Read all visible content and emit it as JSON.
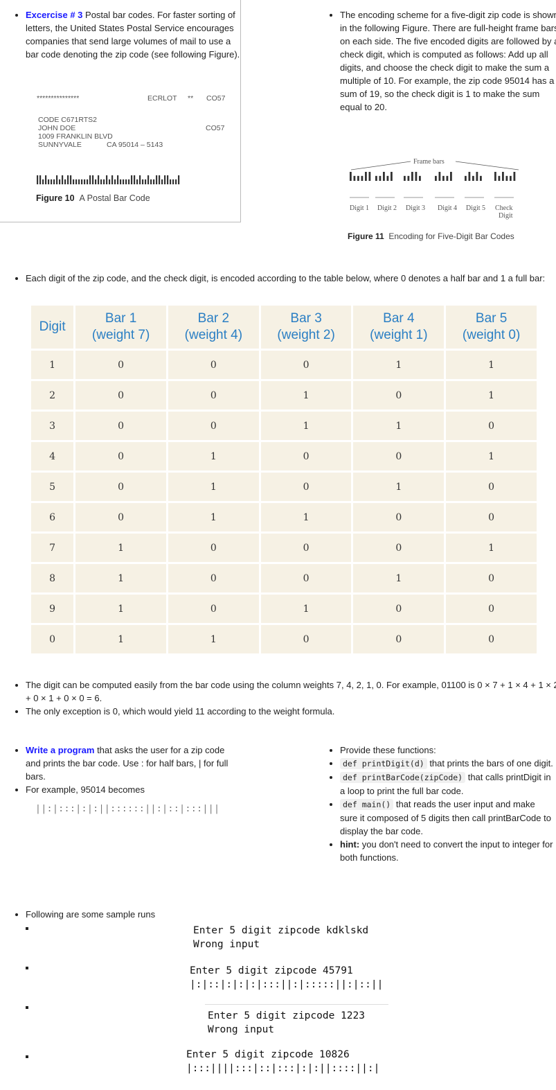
{
  "intro": {
    "title": "Excercise # 3",
    "text": " Postal bar codes. For faster sorting of letters, the United States Postal Service encourages companies that send large volumes of mail to use a bar code denoting the zip code (see following Figure)."
  },
  "figure10": {
    "line1_stars": "***************",
    "line1_ecrlot": "ECRLOT",
    "line1_stars2": "**",
    "line1_co57": "CO57",
    "code": "CODE  C671RTS2",
    "name": "JOHN DOE",
    "co57": "CO57",
    "street": "1009 FRANKLIN BLVD",
    "city": "SUNNYVALE",
    "state_zip": "CA  95014 – 5143",
    "caption_label": "Figure 10",
    "caption_text": "A Postal Bar Code"
  },
  "encoding_text": "The encoding scheme for a five-digit zip code is shown in the following Figure. There are full-height frame bars on each side. The five encoded digits are followed by a check digit, which is computed as follows: Add up all digits, and choose the check digit to make the sum a multiple of 10. For example, the zip code 95014 has a sum of 19, so the check digit is 1 to make the sum equal to 20.",
  "figure11": {
    "frame_bars": "Frame bars",
    "labels": [
      "Digit 1",
      "Digit 2",
      "Digit 3",
      "Digit 4",
      "Digit 5",
      "Check"
    ],
    "check_line2": "Digit",
    "caption_label": "Figure 11",
    "caption_text": "Encoding for Five-Digit Bar Codes"
  },
  "table_intro": "Each digit of the zip code, and the check digit, is encoded according to the table below, where 0 denotes a half bar and 1 a full bar:",
  "table": {
    "headers": [
      [
        "Digit",
        ""
      ],
      [
        "Bar 1",
        "(weight 7)"
      ],
      [
        "Bar 2",
        "(weight 4)"
      ],
      [
        "Bar 3",
        "(weight 2)"
      ],
      [
        "Bar 4",
        "(weight 1)"
      ],
      [
        "Bar 5",
        "(weight 0)"
      ]
    ],
    "rows": [
      [
        "1",
        "0",
        "0",
        "0",
        "1",
        "1"
      ],
      [
        "2",
        "0",
        "0",
        "1",
        "0",
        "1"
      ],
      [
        "3",
        "0",
        "0",
        "1",
        "1",
        "0"
      ],
      [
        "4",
        "0",
        "1",
        "0",
        "0",
        "1"
      ],
      [
        "5",
        "0",
        "1",
        "0",
        "1",
        "0"
      ],
      [
        "6",
        "0",
        "1",
        "1",
        "0",
        "0"
      ],
      [
        "7",
        "1",
        "0",
        "0",
        "0",
        "1"
      ],
      [
        "8",
        "1",
        "0",
        "0",
        "1",
        "0"
      ],
      [
        "9",
        "1",
        "0",
        "1",
        "0",
        "0"
      ],
      [
        "0",
        "1",
        "1",
        "0",
        "0",
        "0"
      ]
    ]
  },
  "notes": [
    "The digit can be computed easily from the bar code using the column weights 7, 4, 2, 1, 0. For example, 01100 is 0 × 7 + 1 × 4 + 1 × 2 + 0 × 1 + 0 × 0 = 6.",
    "The only exception is 0, which would yield 11 according to the weight formula."
  ],
  "task": {
    "title": "Write a program",
    "text": " that asks the user for a zip code and prints the bar code. Use : for half bars, | for full bars.",
    "example": "For example, 95014 becomes",
    "example_bars": "||:|:::|:|:||::::::||:|::|:::|||"
  },
  "functions": {
    "intro": "Provide these functions:",
    "items": [
      {
        "code": "def printDigit(d)",
        "text": " that prints the bars of one digit."
      },
      {
        "code": "def printBarCode(zipCode)",
        "text": " that calls printDigit in a loop to print the full bar code."
      },
      {
        "code": "def main()",
        "text": " that reads the user input and make sure it composed of 5 digits then call printBarCode to display the bar code."
      }
    ],
    "hint_label": "hint:",
    "hint_text": " you don't need to convert the input to integer for both functions."
  },
  "samples": {
    "intro": "Following are some sample runs",
    "runs": [
      {
        "line1": "Enter 5 digit zipcode kdklskd",
        "line2": "Wrong input"
      },
      {
        "line1": "Enter 5 digit zipcode 45791",
        "line2": "|:|::|:|:|:|:::||:|:::::||:|::||"
      },
      {
        "line1": "Enter 5 digit zipcode 1223",
        "line2": "Wrong input"
      },
      {
        "line1": "Enter 5 digit zipcode 10826",
        "line2": "|:::||||:::|::|:::|:|:||::::||:|"
      }
    ]
  }
}
